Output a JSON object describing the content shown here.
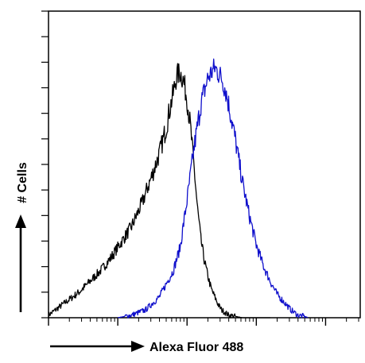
{
  "chart_data": {
    "type": "line",
    "title": "",
    "xlabel": "Alexa Fluor 488",
    "ylabel": "# Cells",
    "x_scale": "log",
    "x_decades": [
      0,
      1,
      2,
      3,
      4
    ],
    "xlim": [
      0,
      4.5
    ],
    "ylim": [
      0,
      100
    ],
    "grid": false,
    "series": [
      {
        "color": "#000000",
        "x": [
          0.0,
          0.15,
          0.3,
          0.45,
          0.6,
          0.75,
          0.9,
          1.05,
          1.2,
          1.35,
          1.5,
          1.6,
          1.7,
          1.75,
          1.8,
          1.85,
          1.9,
          1.95,
          2.0,
          2.05,
          2.1,
          2.15,
          2.2,
          2.25,
          2.3,
          2.35,
          2.4,
          2.45,
          2.5,
          2.55,
          2.6,
          2.7,
          2.8,
          2.9,
          3.0,
          3.1,
          3.2
        ],
        "y": [
          1,
          4,
          7,
          10,
          14,
          18,
          23,
          29,
          35,
          44,
          55,
          63,
          73,
          80,
          86,
          93,
          94,
          91,
          84,
          73,
          58,
          42,
          30,
          22,
          16,
          11,
          8,
          5,
          3,
          2,
          1,
          0.5,
          0,
          0,
          0,
          0,
          0
        ]
      },
      {
        "color": "#1010cc",
        "x": [
          1.0,
          1.2,
          1.4,
          1.6,
          1.8,
          1.9,
          2.0,
          2.1,
          2.2,
          2.3,
          2.4,
          2.5,
          2.55,
          2.6,
          2.7,
          2.8,
          2.9,
          3.0,
          3.1,
          3.2,
          3.3,
          3.4,
          3.5,
          3.6,
          3.7,
          3.75
        ],
        "y": [
          0,
          1,
          3,
          8,
          18,
          27,
          45,
          65,
          82,
          92,
          96,
          92,
          88,
          82,
          68,
          52,
          39,
          28,
          20,
          14,
          9,
          6,
          3,
          1,
          0.5,
          0
        ]
      }
    ]
  }
}
